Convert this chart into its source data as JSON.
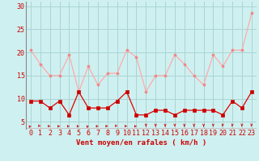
{
  "x": [
    0,
    1,
    2,
    3,
    4,
    5,
    6,
    7,
    8,
    9,
    10,
    11,
    12,
    13,
    14,
    15,
    16,
    17,
    18,
    19,
    20,
    21,
    22,
    23
  ],
  "vent_moyen": [
    9.5,
    9.5,
    8,
    9.5,
    6.5,
    11.5,
    8,
    8,
    8,
    9.5,
    11.5,
    6.5,
    6.5,
    7.5,
    7.5,
    6.5,
    7.5,
    7.5,
    7.5,
    7.5,
    6.5,
    9.5,
    8,
    11.5
  ],
  "rafales": [
    20.5,
    17.5,
    15,
    15,
    19.5,
    11.5,
    17,
    13,
    15.5,
    15.5,
    20.5,
    19,
    11.5,
    15,
    15,
    19.5,
    17.5,
    15,
    13,
    19.5,
    17,
    20.5,
    20.5,
    28.5
  ],
  "ylabel_ticks": [
    5,
    10,
    15,
    20,
    25,
    30
  ],
  "xlabel": "Vent moyen/en rafales ( km/h )",
  "bg_color": "#cff0f0",
  "grid_color": "#aad4d4",
  "line_color_moyen": "#dd0000",
  "line_color_rafales": "#ffaaaa",
  "marker_color_moyen": "#cc0000",
  "marker_color_rafales": "#ee8888",
  "ylim": [
    3.5,
    31
  ],
  "xlim": [
    -0.5,
    23.5
  ],
  "tick_fontsize": 6,
  "label_fontsize": 6.5
}
